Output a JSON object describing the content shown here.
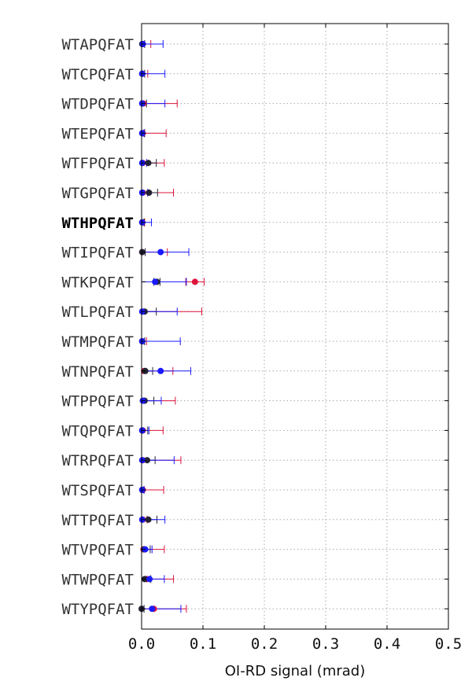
{
  "chart_data": {
    "type": "scatter",
    "orientation": "horizontal",
    "xlabel": "OI-RD signal (mrad)",
    "ylabel": "",
    "title": "",
    "xlim": [
      0.0,
      0.5
    ],
    "x_ticks": [
      "0.0",
      "0.1",
      "0.2",
      "0.3",
      "0.4",
      "0.5"
    ],
    "x_tick_values": [
      0.0,
      0.1,
      0.2,
      0.3,
      0.4,
      0.5
    ],
    "grid": true,
    "categories": [
      "WTAPQFAT",
      "WTCPQFAT",
      "WTDPQFAT",
      "WTEPQFAT",
      "WTFPQFAT",
      "WTGPQFAT",
      "WTHPQFAT",
      "WTIPQFAT",
      "WTKPQFAT",
      "WTLPQFAT",
      "WTMPQFAT",
      "WTNPQFAT",
      "WTPPQFAT",
      "WTQPQFAT",
      "WTRPQFAT",
      "WTSPQFAT",
      "WTTPQFAT",
      "WTVPQFAT",
      "WTWPQFAT",
      "WTYPQFAT"
    ],
    "bold_category": "WTHPQFAT",
    "series": [
      {
        "color": "#dc143c",
        "values": [
          0.002,
          0.001,
          0.003,
          0.002,
          0.002,
          0.002,
          0.001,
          0.001,
          0.087,
          0.003,
          0.001,
          0.004,
          0.004,
          0.002,
          0.002,
          0.002,
          0.002,
          0.003,
          0.008,
          0.02
        ],
        "err_low": [
          0.0,
          0.0,
          0.0,
          0.0,
          0.0,
          0.0,
          0.0,
          0.0,
          0.072,
          0.0,
          0.0,
          0.0,
          0.0,
          0.0,
          0.0,
          0.0,
          0.0,
          0.0,
          0.0,
          0.0
        ],
        "err_high": [
          0.015,
          0.01,
          0.058,
          0.04,
          0.037,
          0.052,
          0.005,
          0.042,
          0.102,
          0.098,
          0.008,
          0.051,
          0.055,
          0.035,
          0.064,
          0.036,
          0.009,
          0.037,
          0.052,
          0.073
        ]
      },
      {
        "color": "#222233",
        "values": [
          0.001,
          0.001,
          0.001,
          0.001,
          0.011,
          0.012,
          0.001,
          0.001,
          0.025,
          0.005,
          0.001,
          0.006,
          0.005,
          0.001,
          0.009,
          0.001,
          0.011,
          0.004,
          0.005,
          0.0
        ],
        "err_low": [
          0.0,
          0.0,
          0.0,
          0.0,
          0.0,
          0.0,
          0.0,
          0.0,
          0.02,
          0.0,
          0.0,
          0.0,
          0.0,
          0.0,
          0.0,
          0.0,
          0.0,
          0.0,
          0.0,
          0.0
        ],
        "err_high": [
          0.005,
          0.005,
          0.008,
          0.005,
          0.024,
          0.026,
          0.004,
          0.006,
          0.03,
          0.024,
          0.005,
          0.018,
          0.02,
          0.01,
          0.022,
          0.004,
          0.025,
          0.014,
          0.015,
          0.004
        ]
      },
      {
        "color": "#1a1aff",
        "values": [
          0.002,
          0.001,
          0.001,
          0.001,
          0.001,
          0.001,
          0.001,
          0.031,
          0.022,
          0.001,
          0.001,
          0.031,
          0.002,
          0.001,
          0.001,
          0.001,
          0.001,
          0.006,
          0.013,
          0.017
        ],
        "err_low": [
          0.0,
          0.0,
          0.0,
          0.0,
          0.0,
          0.0,
          0.0,
          0.0,
          0.0,
          0.0,
          0.0,
          0.0,
          0.0,
          0.0,
          0.0,
          0.0,
          0.0,
          0.0,
          0.0,
          0.0
        ],
        "err_high": [
          0.035,
          0.038,
          0.038,
          0.004,
          0.008,
          0.01,
          0.016,
          0.077,
          0.073,
          0.058,
          0.063,
          0.08,
          0.032,
          0.012,
          0.053,
          0.004,
          0.038,
          0.017,
          0.037,
          0.064
        ]
      }
    ]
  }
}
